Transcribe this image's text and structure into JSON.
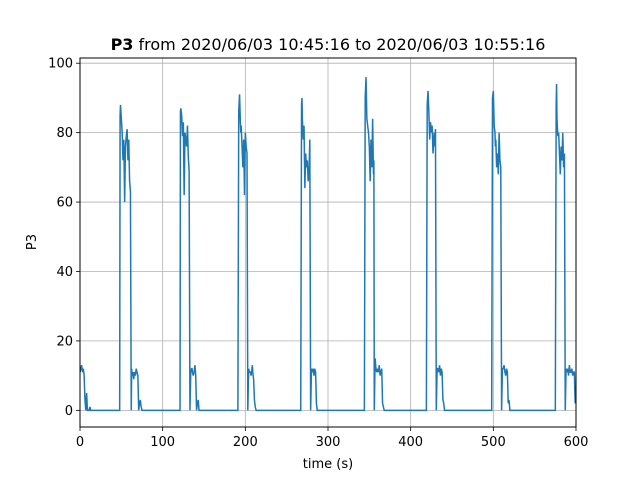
{
  "chart_data": {
    "type": "line",
    "title_bold": "P3",
    "title_rest": " from 2020/06/03 10:45:16 to 2020/06/03 10:55:16",
    "xlabel": "time (s)",
    "ylabel": "P3",
    "xlim": [
      0,
      600
    ],
    "ylim": [
      -4.8,
      101.5
    ],
    "grid": true,
    "x_ticks": [
      0,
      100,
      200,
      300,
      400,
      500,
      600
    ],
    "y_ticks": [
      0,
      20,
      40,
      60,
      80,
      100
    ],
    "line_color": "#1f77b4",
    "series": [
      {
        "x": [
          0,
          1,
          2,
          3,
          4,
          5,
          6,
          7,
          8,
          9,
          10,
          11,
          12,
          13,
          14,
          15,
          16,
          17,
          18,
          19,
          20,
          21,
          22,
          23,
          24,
          25,
          26,
          27,
          28,
          29,
          30,
          31,
          32,
          33,
          34,
          35,
          36,
          37,
          38,
          39,
          40,
          41,
          42,
          43,
          44,
          45,
          46,
          47,
          48,
          48.5,
          49,
          50,
          51,
          52,
          53,
          54,
          55,
          56,
          57,
          58,
          59,
          60,
          61,
          62,
          62.5,
          63,
          64,
          65,
          66,
          67,
          68,
          69,
          70,
          71,
          72,
          73,
          74,
          75,
          76,
          77,
          78,
          79,
          80,
          81,
          82,
          83,
          84,
          85,
          86,
          87,
          88,
          89,
          90,
          91,
          92,
          93,
          94,
          95,
          96,
          97,
          98,
          99,
          100,
          101,
          102,
          103,
          104,
          105,
          106,
          107,
          108,
          109,
          110,
          111,
          112,
          113,
          114,
          115,
          116,
          117,
          118,
          119,
          120,
          121,
          121.5,
          122,
          123,
          124,
          125,
          126,
          127,
          128,
          129,
          130,
          131,
          132,
          133,
          134,
          135,
          135.5,
          136,
          137,
          138,
          139,
          140,
          141,
          142,
          143,
          144,
          145,
          146,
          147,
          148,
          149,
          150,
          151,
          152,
          153,
          154,
          155,
          156,
          157,
          158,
          159,
          160,
          161,
          162,
          163,
          164,
          165,
          166,
          167,
          168,
          169,
          170,
          171,
          172,
          173,
          174,
          175,
          176,
          177,
          178,
          179,
          180,
          181,
          182,
          183,
          184,
          185,
          186,
          187,
          188,
          189,
          190,
          191,
          192,
          193,
          194,
          194.5,
          195,
          196,
          197,
          198,
          199,
          200,
          201,
          202,
          203,
          204,
          205,
          206,
          207,
          208,
          208.5,
          209,
          210,
          211,
          212,
          213,
          214,
          215,
          216,
          217,
          218,
          219,
          220,
          221,
          222,
          223,
          224,
          225,
          226,
          227,
          228,
          229,
          230,
          231,
          232,
          233,
          234,
          235,
          236,
          237,
          238,
          239,
          240,
          241,
          242,
          243,
          244,
          245,
          246,
          247,
          248,
          249,
          250,
          251,
          252,
          253,
          254,
          255,
          256,
          257,
          258,
          259,
          260,
          261,
          262,
          263,
          264,
          265,
          266,
          267,
          268,
          268.5,
          269,
          270,
          271,
          272,
          273,
          274,
          275,
          276,
          277,
          278,
          279,
          280,
          281,
          282,
          282.5,
          283,
          284,
          285,
          286,
          287,
          288,
          289,
          290,
          291,
          292,
          293,
          294,
          295,
          296,
          297,
          298,
          299,
          300,
          301,
          302,
          303,
          304,
          305,
          306,
          307,
          308,
          309,
          310,
          311,
          312,
          313,
          314,
          315,
          316,
          317,
          318,
          319,
          320,
          321,
          322,
          323,
          324,
          325,
          326,
          327,
          328,
          329,
          330,
          331,
          332,
          333,
          334,
          335,
          336,
          337,
          338,
          339,
          340,
          341,
          341.5,
          342,
          343,
          344,
          345,
          346,
          347,
          348,
          349,
          350,
          351,
          352,
          353,
          354,
          355,
          355.5,
          356,
          357,
          358,
          359,
          360,
          361,
          362,
          363,
          364,
          365,
          366,
          367,
          368,
          369,
          370,
          371,
          372,
          373,
          374,
          375,
          376,
          377,
          378,
          379,
          380,
          381,
          382,
          383,
          384,
          385,
          386,
          387,
          388,
          389,
          390,
          391,
          392,
          393,
          394,
          395,
          396,
          397,
          398,
          399,
          400,
          401,
          402,
          403,
          404,
          405,
          406,
          407,
          408,
          409,
          410,
          411,
          412,
          413,
          414,
          414.5,
          415,
          416,
          417,
          418,
          419,
          420,
          421,
          422,
          423,
          424,
          425,
          426,
          427,
          428,
          428.5,
          429,
          430,
          431,
          432,
          433,
          434,
          435,
          436,
          437,
          438,
          439,
          440,
          441,
          442,
          443,
          444,
          445,
          446,
          447,
          448,
          449,
          450,
          451,
          452,
          453,
          454,
          455,
          456,
          457,
          458,
          459,
          460,
          461,
          462,
          463,
          464,
          465,
          466,
          467,
          468,
          469,
          470,
          471,
          472,
          473,
          474,
          475,
          476,
          477,
          478,
          479,
          480,
          481,
          482,
          483,
          484,
          485,
          486,
          487,
          488,
          488.5,
          489,
          490,
          491,
          492,
          493,
          494,
          495,
          496,
          497,
          498,
          499,
          500,
          501,
          502,
          502.5,
          503,
          504,
          505,
          506,
          507,
          508,
          509,
          510,
          511,
          512,
          513,
          514,
          515,
          516,
          517,
          518,
          519,
          520,
          521,
          522,
          523,
          524,
          525,
          526,
          527,
          528,
          529,
          530,
          531,
          532,
          533,
          534,
          535,
          536,
          537,
          538,
          539,
          540,
          541,
          542,
          543,
          544,
          545,
          546,
          547,
          548,
          549,
          550,
          551,
          552,
          553,
          554,
          555,
          556,
          557,
          558,
          559,
          560,
          561,
          562,
          562.5,
          563,
          564,
          565,
          566,
          567,
          568,
          569,
          570,
          571,
          572,
          573,
          574,
          575,
          576,
          576.5,
          577,
          578,
          579,
          580,
          581,
          582,
          583,
          584,
          585,
          586,
          587,
          588,
          589,
          590,
          591,
          592,
          593,
          594,
          595,
          596,
          597,
          598,
          599,
          600
        ],
        "y": [
          11,
          12,
          13,
          11,
          12,
          10,
          3,
          0,
          5,
          0,
          0,
          0,
          1,
          0,
          0,
          0,
          0,
          0,
          0,
          0,
          0,
          0,
          0,
          0,
          0,
          0,
          0,
          0,
          0,
          0,
          0,
          0,
          0,
          0,
          0,
          0,
          0,
          0,
          0,
          0,
          0,
          0,
          0,
          0,
          0,
          0,
          0,
          0,
          0,
          85,
          88,
          84,
          80,
          72,
          78,
          60,
          76,
          79,
          81,
          72,
          78,
          66,
          63,
          0,
          12,
          10,
          11,
          9,
          11,
          10,
          12,
          11,
          10,
          0,
          2,
          3,
          1,
          0,
          0,
          0,
          0,
          0,
          0,
          0,
          0,
          0,
          0,
          0,
          0,
          0,
          0,
          0,
          0,
          0,
          0,
          0,
          0,
          0,
          0,
          0,
          0,
          0,
          0,
          0,
          0,
          0,
          0,
          0,
          0,
          0,
          0,
          0,
          0,
          0,
          0,
          0,
          0,
          0,
          0,
          0,
          0,
          0,
          0,
          0,
          86,
          87,
          85,
          79,
          83,
          62,
          80,
          78,
          76,
          82,
          73,
          69,
          0,
          11,
          12,
          12,
          11,
          10,
          11,
          13,
          10,
          0,
          2,
          3,
          0,
          0,
          0,
          0,
          0,
          0,
          0,
          0,
          0,
          0,
          0,
          0,
          0,
          0,
          0,
          0,
          0,
          0,
          0,
          0,
          0,
          0,
          0,
          0,
          0,
          0,
          0,
          0,
          0,
          0,
          0,
          0,
          0,
          0,
          0,
          0,
          0,
          0,
          0,
          0,
          0,
          0,
          0,
          0,
          0,
          0,
          0,
          0,
          86,
          91,
          83,
          80,
          82,
          76,
          70,
          78,
          62,
          80,
          76,
          74,
          0,
          12,
          11,
          11,
          10,
          12,
          13,
          11,
          9,
          3,
          1,
          0,
          0,
          0,
          0,
          0,
          0,
          0,
          0,
          0,
          0,
          0,
          0,
          0,
          0,
          0,
          0,
          0,
          0,
          0,
          0,
          0,
          0,
          0,
          0,
          0,
          0,
          0,
          0,
          0,
          0,
          0,
          0,
          0,
          0,
          0,
          0,
          0,
          0,
          0,
          0,
          0,
          0,
          0,
          0,
          0,
          0,
          0,
          0,
          0,
          0,
          0,
          0,
          0,
          0,
          0,
          88,
          90,
          84,
          78,
          82,
          64,
          74,
          70,
          72,
          66,
          68,
          78,
          0,
          12,
          11,
          12,
          11,
          10,
          12,
          11,
          2,
          0,
          0,
          0,
          0,
          0,
          0,
          0,
          0,
          0,
          0,
          0,
          0,
          0,
          0,
          0,
          0,
          0,
          0,
          0,
          0,
          0,
          0,
          0,
          0,
          0,
          0,
          0,
          0,
          0,
          0,
          0,
          0,
          0,
          0,
          0,
          0,
          0,
          0,
          0,
          0,
          0,
          0,
          0,
          0,
          0,
          0,
          0,
          0,
          0,
          0,
          0,
          0,
          0,
          0,
          0,
          0,
          0,
          0,
          0,
          90,
          96,
          84,
          82,
          80,
          76,
          66,
          78,
          70,
          84,
          68,
          72,
          0,
          15,
          12,
          11,
          12,
          11,
          13,
          10,
          11,
          12,
          2,
          1,
          0,
          0,
          0,
          0,
          0,
          0,
          0,
          0,
          0,
          0,
          0,
          0,
          0,
          0,
          0,
          0,
          0,
          0,
          0,
          0,
          0,
          0,
          0,
          0,
          0,
          0,
          0,
          0,
          0,
          0,
          0,
          0,
          0,
          0,
          0,
          0,
          0,
          0,
          0,
          0,
          0,
          0,
          0,
          0,
          0,
          0,
          0,
          0,
          0,
          0,
          0,
          0,
          0,
          88,
          92,
          86,
          78,
          83,
          80,
          82,
          74,
          78,
          80,
          76,
          81,
          0,
          12,
          12,
          11,
          13,
          10,
          12,
          11,
          3,
          2,
          0,
          0,
          0,
          0,
          0,
          0,
          0,
          0,
          0,
          0,
          0,
          0,
          0,
          0,
          0,
          0,
          0,
          0,
          0,
          0,
          0,
          0,
          0,
          0,
          0,
          0,
          0,
          0,
          0,
          0,
          0,
          0,
          0,
          0,
          0,
          0,
          0,
          0,
          0,
          0,
          0,
          0,
          0,
          0,
          0,
          0,
          0,
          0,
          0,
          0,
          0,
          0,
          0,
          0,
          0,
          0,
          0,
          0,
          0,
          90,
          92,
          82,
          80,
          76,
          78,
          70,
          74,
          68,
          80,
          72,
          70,
          0,
          12,
          12,
          13,
          11,
          10,
          12,
          11,
          2,
          3,
          0,
          0,
          0,
          0,
          0,
          0,
          0,
          0,
          0,
          0,
          0,
          0,
          0,
          0,
          0,
          0,
          0,
          0,
          0,
          0,
          0,
          0,
          0,
          0,
          0,
          0,
          0,
          0,
          0,
          0,
          0,
          0,
          0,
          0,
          0,
          0,
          0,
          0,
          0,
          0,
          0,
          0,
          0,
          0,
          0,
          0,
          0,
          0,
          0,
          0,
          0,
          0,
          0,
          0,
          0,
          0,
          0,
          88,
          94,
          84,
          79,
          80,
          74,
          68,
          76,
          72,
          80,
          70,
          74,
          0,
          12,
          11,
          12,
          10,
          13,
          11,
          11,
          12,
          10,
          11,
          11,
          2,
          4
        ]
      }
    ]
  }
}
